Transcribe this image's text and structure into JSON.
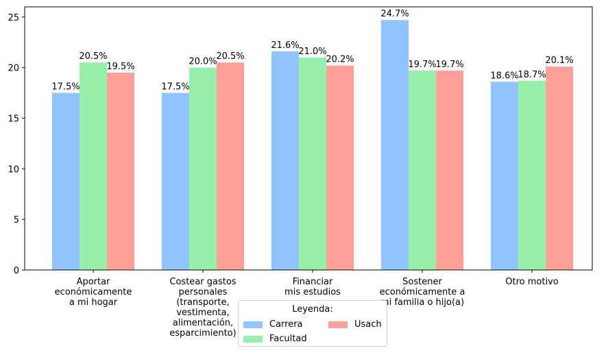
{
  "chart_data": {
    "type": "bar",
    "categories": [
      "Aportar\neconómicamente\na mi hogar",
      "Costear gastos\npersonales\n(transporte,\nvestimenta,\nalimentación,\nesparcimiento)",
      "Financiar\nmis estudios",
      "Sostener\neconómicamente a\nmi familia o hijo(a)",
      "Otro motivo"
    ],
    "series": [
      {
        "name": "Carrera",
        "color": "#92c5fe",
        "values": [
          17.5,
          17.5,
          21.6,
          24.7,
          18.6
        ],
        "labels": [
          "17.5%",
          "17.5%",
          "21.6%",
          "24.7%",
          "18.6%"
        ]
      },
      {
        "name": "Facultad",
        "color": "#98eeab",
        "values": [
          20.5,
          20.0,
          21.0,
          19.7,
          18.7
        ],
        "labels": [
          "20.5%",
          "20.0%",
          "21.0%",
          "19.7%",
          "18.7%"
        ]
      },
      {
        "name": "Usach",
        "color": "#fea09a",
        "values": [
          19.5,
          20.5,
          20.2,
          19.7,
          20.1
        ],
        "labels": [
          "19.5%",
          "20.5%",
          "20.2%",
          "19.7%",
          "20.1%"
        ]
      }
    ],
    "ylim": [
      0,
      26
    ],
    "yticks": [
      0,
      5,
      10,
      15,
      20,
      25
    ],
    "legend": {
      "title": "Leyenda:",
      "placement": "bottom-center"
    },
    "grid": false
  }
}
